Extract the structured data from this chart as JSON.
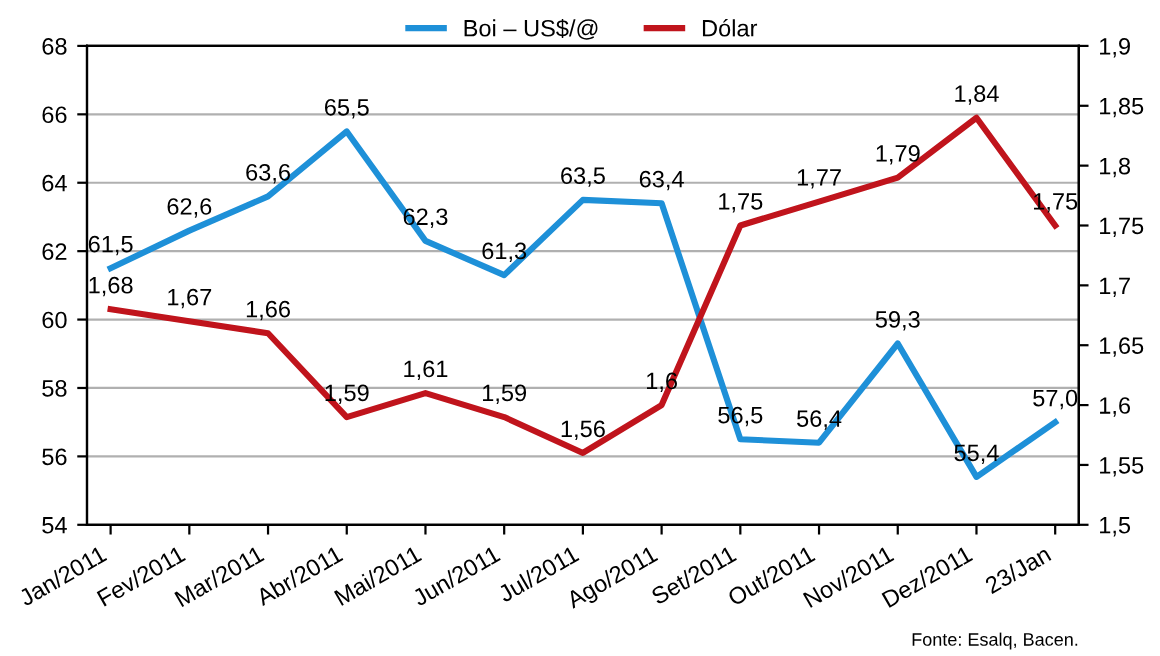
{
  "chart_data": {
    "type": "line",
    "categories": [
      "Jan/2011",
      "Fev/2011",
      "Mar/2011",
      "Abr/2011",
      "Mai/2011",
      "Jun/2011",
      "Jul/2011",
      "Ago/2011",
      "Set/2011",
      "Out/2011",
      "Nov/2011",
      "Dez/2011",
      "23/Jan"
    ],
    "series": [
      {
        "name": "Boi – US$/@",
        "color": "#1e90d8",
        "values": [
          61.5,
          62.6,
          63.6,
          65.5,
          62.3,
          61.3,
          63.5,
          63.4,
          56.5,
          56.4,
          59.3,
          55.4,
          57.0
        ],
        "value_labels": [
          "61,5",
          "62,6",
          "63,6",
          "65,5",
          "62,3",
          "61,3",
          "63,5",
          "63,4",
          "56,5",
          "56,4",
          "59,3",
          "55,4",
          "57,0"
        ]
      },
      {
        "name": "Dólar",
        "color": "#c0141c",
        "axis": "y2",
        "values": [
          1.68,
          1.67,
          1.66,
          1.59,
          1.61,
          1.59,
          1.56,
          1.6,
          1.75,
          1.77,
          1.79,
          1.84,
          1.75
        ],
        "value_labels": [
          "1,68",
          "1,67",
          "1,66",
          "1,59",
          "1,61",
          "1,59",
          "1,56",
          "1,6",
          "1,75",
          "1,77",
          "1,79",
          "1,84",
          "1,75"
        ]
      }
    ],
    "ylim": [
      54,
      68
    ],
    "yticks": [
      54,
      56,
      58,
      60,
      62,
      64,
      66,
      68
    ],
    "y2lim": [
      1.5,
      1.9
    ],
    "y2ticks": [
      {
        "value": 1.5,
        "label": "1,5"
      },
      {
        "value": 1.55,
        "label": "1,55"
      },
      {
        "value": 1.6,
        "label": "1,6"
      },
      {
        "value": 1.65,
        "label": "1,65"
      },
      {
        "value": 1.7,
        "label": "1,7"
      },
      {
        "value": 1.75,
        "label": "1,75"
      },
      {
        "value": 1.8,
        "label": "1,8"
      },
      {
        "value": 1.85,
        "label": "1,85"
      },
      {
        "value": 1.9,
        "label": "1,9"
      }
    ],
    "grid": "y",
    "legend": "top",
    "marker": "none",
    "line_style": "solid",
    "annotations": [
      "Fonte: Esalq, Bacen."
    ]
  }
}
